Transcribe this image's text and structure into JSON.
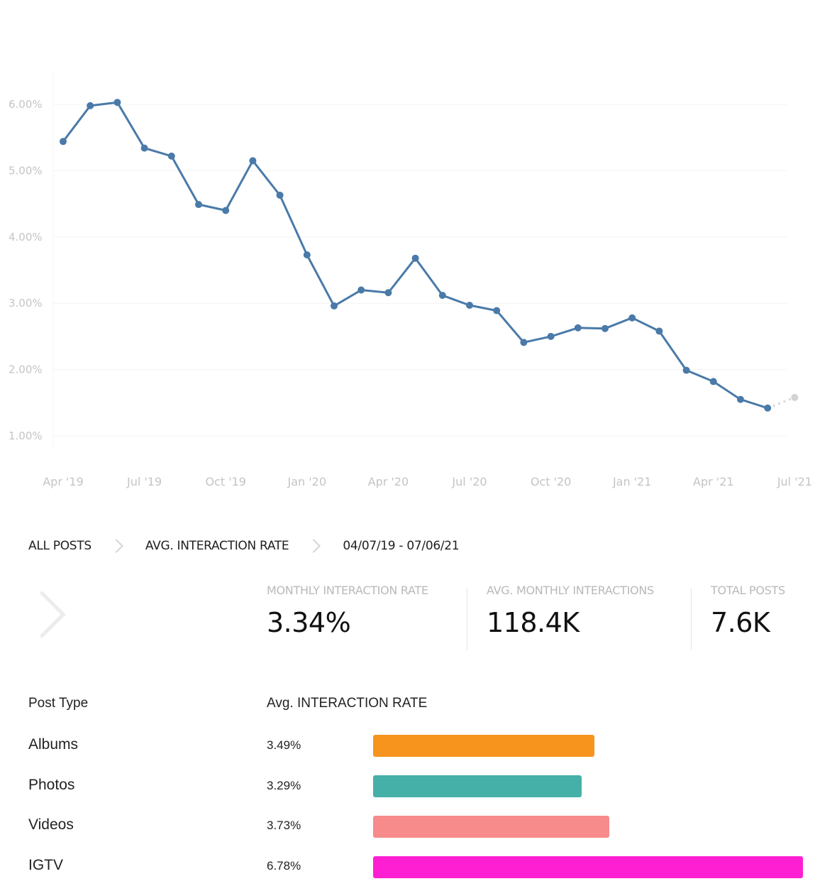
{
  "chart_data": {
    "type": "line",
    "x": [
      "Apr '19",
      "May '19",
      "Jun '19",
      "Jul '19",
      "Aug '19",
      "Sep '19",
      "Oct '19",
      "Nov '19",
      "Dec '19",
      "Jan '20",
      "Feb '20",
      "Mar '20",
      "Apr '20",
      "May '20",
      "Jun '20",
      "Jul '20",
      "Aug '20",
      "Sep '20",
      "Oct '20",
      "Nov '20",
      "Dec '20",
      "Jan '21",
      "Feb '21",
      "Mar '21",
      "Apr '21",
      "May '21",
      "Jun '21",
      "Jul '21"
    ],
    "series": [
      {
        "color": "#4a7aa8",
        "values": [
          5.44,
          5.98,
          6.03,
          5.34,
          5.22,
          4.49,
          4.4,
          5.15,
          4.63,
          3.73,
          2.96,
          3.2,
          3.16,
          3.68,
          3.12,
          2.97,
          2.89,
          2.41,
          2.5,
          2.63,
          2.62,
          2.78,
          2.58,
          1.99,
          1.82,
          1.55,
          1.42,
          1.58
        ],
        "projected_from_index": 26
      }
    ],
    "yticks": [
      "1.00%",
      "2.00%",
      "3.00%",
      "4.00%",
      "5.00%",
      "6.00%"
    ],
    "xticks": [
      "Apr '19",
      "Jul '19",
      "Oct '19",
      "Jan '20",
      "Apr '20",
      "Jul '20",
      "Oct '20",
      "Jan '21",
      "Apr '21",
      "Jul '21"
    ],
    "ylim": [
      1.0,
      6.0
    ],
    "grid": true
  },
  "breadcrumb": [
    "ALL POSTS",
    "AVG. INTERACTION RATE",
    "04/07/19 - 07/06/21"
  ],
  "stats": [
    {
      "label": "MONTHLY INTERACTION RATE",
      "value": "3.34%"
    },
    {
      "label": "AVG. MONTHLY INTERACTIONS",
      "value": "118.4K"
    },
    {
      "label": "TOTAL POSTS",
      "value": "7.6K"
    }
  ],
  "post_table": {
    "headers": [
      "Post Type",
      "Avg. INTERACTION RATE"
    ],
    "rows": [
      {
        "type": "Albums",
        "rate": "3.49%",
        "value": 3.49,
        "color": "#f7941d"
      },
      {
        "type": "Photos",
        "rate": "3.29%",
        "value": 3.29,
        "color": "#45b0a8"
      },
      {
        "type": "Videos",
        "rate": "3.73%",
        "value": 3.73,
        "color": "#f78a8a"
      },
      {
        "type": "IGTV",
        "rate": "6.78%",
        "value": 6.78,
        "color": "#ff1fd2"
      }
    ]
  }
}
